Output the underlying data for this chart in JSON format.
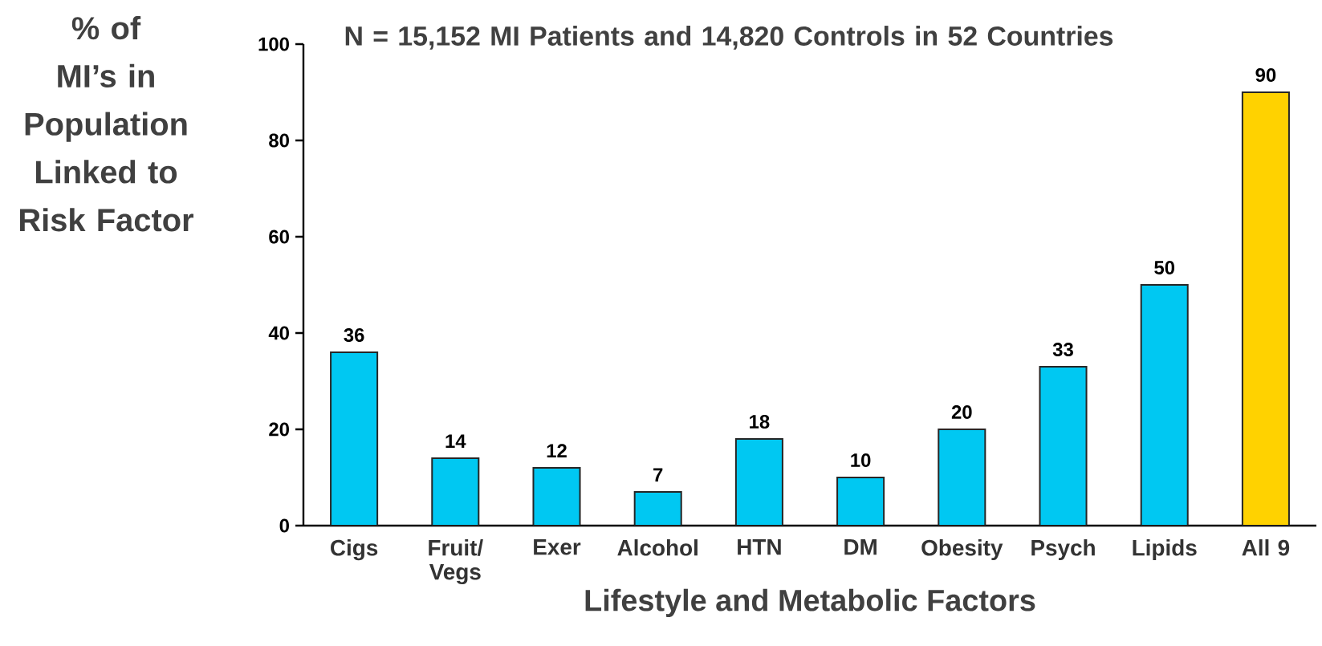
{
  "chart_data": {
    "type": "bar",
    "title": "N = 15,152 MI Patients and 14,820 Controls in 52 Countries",
    "ylabel": "% of MI’s in Population Linked to Risk Factor",
    "xlabel": "Lifestyle and Metabolic Factors",
    "categories": [
      "Cigs",
      "Fruit/ Vegs",
      "Exer",
      "Alcohol",
      "HTN",
      "DM",
      "Obesity",
      "Psych",
      "Lipids",
      "All 9"
    ],
    "values": [
      36,
      14,
      12,
      7,
      18,
      10,
      20,
      33,
      50,
      90
    ],
    "colors": [
      "#00c8f2",
      "#00c8f2",
      "#00c8f2",
      "#00c8f2",
      "#00c8f2",
      "#00c8f2",
      "#00c8f2",
      "#00c8f2",
      "#00c8f2",
      "#ffd200"
    ],
    "data_labels": true,
    "ylim": [
      0,
      100
    ],
    "yticks": [
      0,
      20,
      40,
      60,
      80,
      100
    ],
    "grid": false
  }
}
